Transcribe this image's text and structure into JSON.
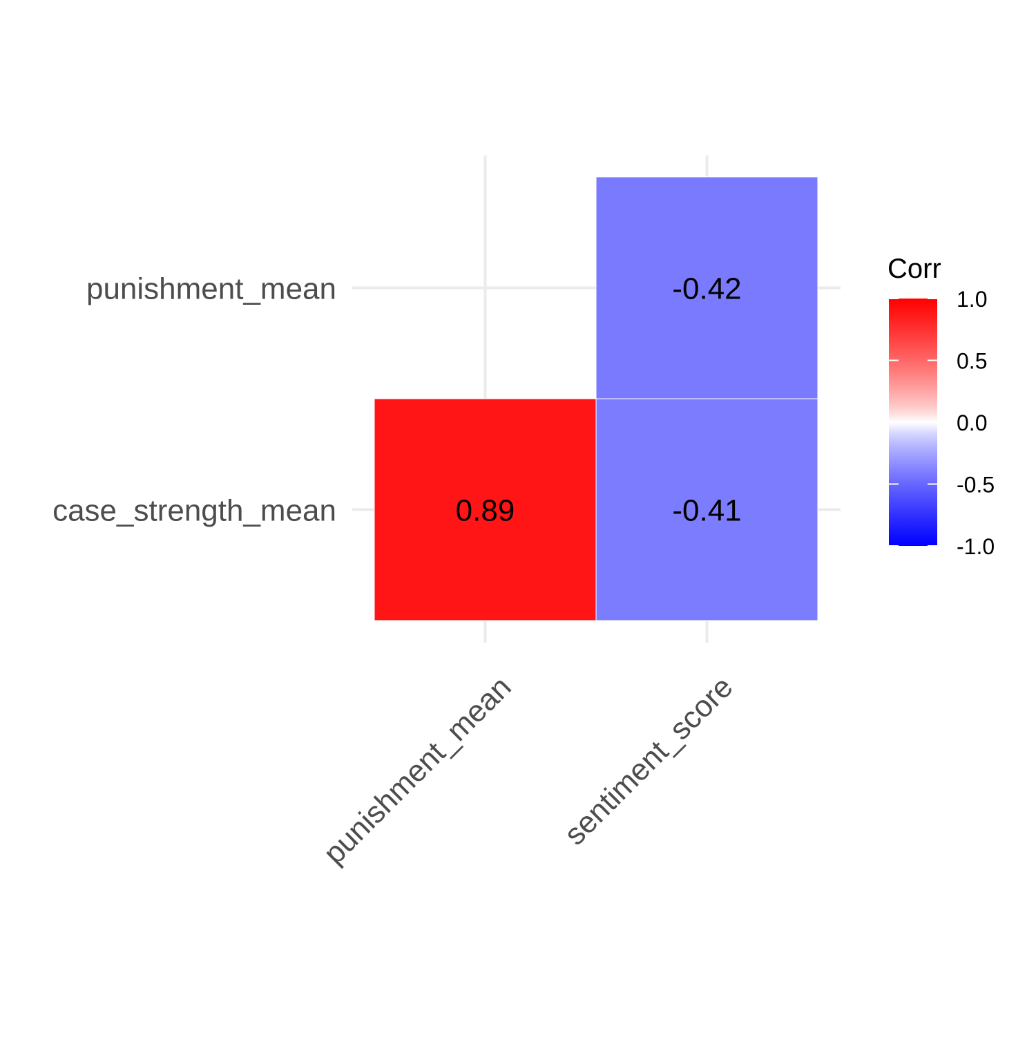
{
  "chart_data": {
    "type": "heatmap",
    "x_categories": [
      "punishment_mean",
      "sentiment_score"
    ],
    "y_categories": [
      "case_strength_mean",
      "punishment_mean"
    ],
    "cells": [
      {
        "x": "punishment_mean",
        "y": "case_strength_mean",
        "value": 0.89,
        "label": "0.89"
      },
      {
        "x": "sentiment_score",
        "y": "case_strength_mean",
        "value": -0.41,
        "label": "-0.41"
      },
      {
        "x": "sentiment_score",
        "y": "punishment_mean",
        "value": -0.42,
        "label": "-0.42"
      }
    ],
    "legend": {
      "title": "Corr",
      "placement": "right",
      "limits": [
        -1,
        1
      ],
      "ticks": [
        {
          "value": 1.0,
          "label": "1.0"
        },
        {
          "value": 0.5,
          "label": "0.5"
        },
        {
          "value": 0.0,
          "label": "0.0"
        },
        {
          "value": -0.5,
          "label": "-0.5"
        },
        {
          "value": -1.0,
          "label": "-1.0"
        }
      ]
    },
    "colors": {
      "low": "#0000ff",
      "mid": "#ffffff",
      "high": "#ff0000"
    },
    "grid": true,
    "x_tick_rotation": "45deg"
  }
}
